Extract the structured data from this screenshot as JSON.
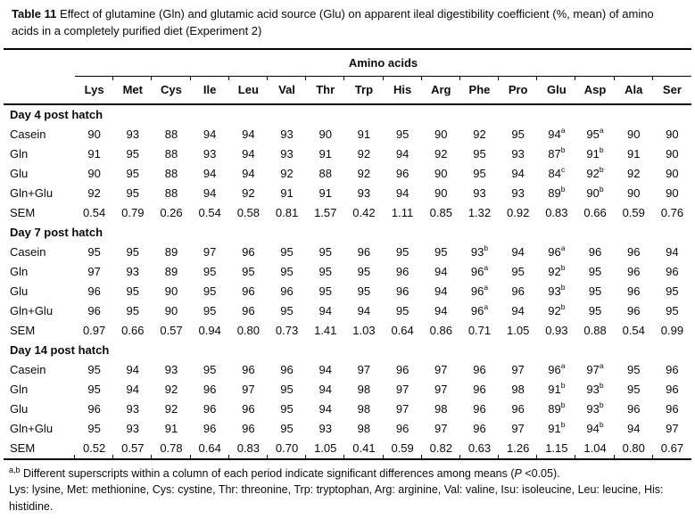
{
  "title": {
    "label": "Table 11",
    "text": " Effect of glutamine (Gln) and glutamic acid source (Glu) on apparent ileal digestibility coefficient (%, mean) of amino acids in a completely purified diet (Experiment 2)"
  },
  "table": {
    "group_header": "Amino acids",
    "columns": [
      "Lys",
      "Met",
      "Cys",
      "Ile",
      "Leu",
      "Val",
      "Thr",
      "Trp",
      "His",
      "Arg",
      "Phe",
      "Pro",
      "Glu",
      "Asp",
      "Ala",
      "Ser"
    ],
    "sections": [
      {
        "label": "Day 4 post hatch",
        "rows": [
          {
            "label": "Casein",
            "values": [
              "90",
              "93",
              "88",
              "94",
              "94",
              "93",
              "90",
              "91",
              "95",
              "90",
              "92",
              "95",
              "94^a",
              "95^a",
              "90",
              "90"
            ]
          },
          {
            "label": "Gln",
            "values": [
              "91",
              "95",
              "88",
              "93",
              "94",
              "93",
              "91",
              "92",
              "94",
              "92",
              "95",
              "93",
              "87^b",
              "91^b",
              "91",
              "90"
            ]
          },
          {
            "label": "Glu",
            "values": [
              "90",
              "95",
              "88",
              "94",
              "94",
              "92",
              "88",
              "92",
              "96",
              "90",
              "95",
              "94",
              "84^c",
              "92^b",
              "92",
              "90"
            ]
          },
          {
            "label": "Gln+Glu",
            "values": [
              "92",
              "95",
              "88",
              "94",
              "92",
              "91",
              "91",
              "93",
              "94",
              "90",
              "93",
              "93",
              "89^b",
              "90^b",
              "90",
              "90"
            ]
          },
          {
            "label": "SEM",
            "values": [
              "0.54",
              "0.79",
              "0.26",
              "0.54",
              "0.58",
              "0.81",
              "1.57",
              "0.42",
              "1.11",
              "0.85",
              "1.32",
              "0.92",
              "0.83",
              "0.66",
              "0.59",
              "0.76"
            ]
          }
        ]
      },
      {
        "label": "Day 7 post hatch",
        "rows": [
          {
            "label": "Casein",
            "values": [
              "95",
              "95",
              "89",
              "97",
              "96",
              "95",
              "95",
              "96",
              "95",
              "95",
              "93^b",
              "94",
              "96^a",
              "96",
              "96",
              "94"
            ]
          },
          {
            "label": "Gln",
            "values": [
              "97",
              "93",
              "89",
              "95",
              "95",
              "95",
              "95",
              "95",
              "96",
              "94",
              "96^a",
              "95",
              "92^b",
              "95",
              "96",
              "96"
            ]
          },
          {
            "label": "Glu",
            "values": [
              "96",
              "95",
              "90",
              "95",
              "96",
              "96",
              "95",
              "95",
              "96",
              "94",
              "96^a",
              "96",
              "93^b",
              "95",
              "96",
              "95"
            ]
          },
          {
            "label": "Gln+Glu",
            "values": [
              "96",
              "95",
              "90",
              "95",
              "96",
              "95",
              "94",
              "94",
              "95",
              "94",
              "96^a",
              "94",
              "92^b",
              "95",
              "96",
              "95"
            ]
          },
          {
            "label": "SEM",
            "values": [
              "0.97",
              "0.66",
              "0.57",
              "0.94",
              "0.80",
              "0.73",
              "1.41",
              "1.03",
              "0.64",
              "0.86",
              "0.71",
              "1.05",
              "0.93",
              "0.88",
              "0.54",
              "0.99"
            ]
          }
        ]
      },
      {
        "label": "Day 14 post hatch",
        "rows": [
          {
            "label": "Casein",
            "values": [
              "95",
              "94",
              "93",
              "95",
              "96",
              "96",
              "94",
              "97",
              "96",
              "97",
              "96",
              "97",
              "96^a",
              "97^a",
              "95",
              "96"
            ]
          },
          {
            "label": "Gln",
            "values": [
              "95",
              "94",
              "92",
              "96",
              "97",
              "95",
              "94",
              "98",
              "97",
              "97",
              "96",
              "98",
              "91^b",
              "93^b",
              "95",
              "96"
            ]
          },
          {
            "label": "Glu",
            "values": [
              "96",
              "93",
              "92",
              "96",
              "96",
              "95",
              "94",
              "98",
              "97",
              "98",
              "96",
              "96",
              "89^b",
              "93^b",
              "96",
              "96"
            ]
          },
          {
            "label": "Gln+Glu",
            "values": [
              "95",
              "93",
              "91",
              "96",
              "96",
              "95",
              "93",
              "98",
              "96",
              "97",
              "96",
              "97",
              "91^b",
              "94^b",
              "94",
              "97"
            ]
          },
          {
            "label": "SEM",
            "values": [
              "0.52",
              "0.57",
              "0.78",
              "0.64",
              "0.83",
              "0.70",
              "1.05",
              "0.41",
              "0.59",
              "0.82",
              "0.63",
              "1.26",
              "1.15",
              "1.04",
              "0.80",
              "0.67"
            ]
          }
        ]
      }
    ]
  },
  "footnotes": {
    "sup": "a,b",
    "note1_pre": " Different superscripts within a column of each period indicate significant differences among means (",
    "note1_italic": "P",
    "note1_post": " <0.05).",
    "note2": "Lys: lysine, Met: methionine, Cys: cystine, Thr: threonine, Trp: tryptophan, Arg: arginine, Val: valine, Isu: isoleucine, Leu: leucine, His: histidine."
  }
}
